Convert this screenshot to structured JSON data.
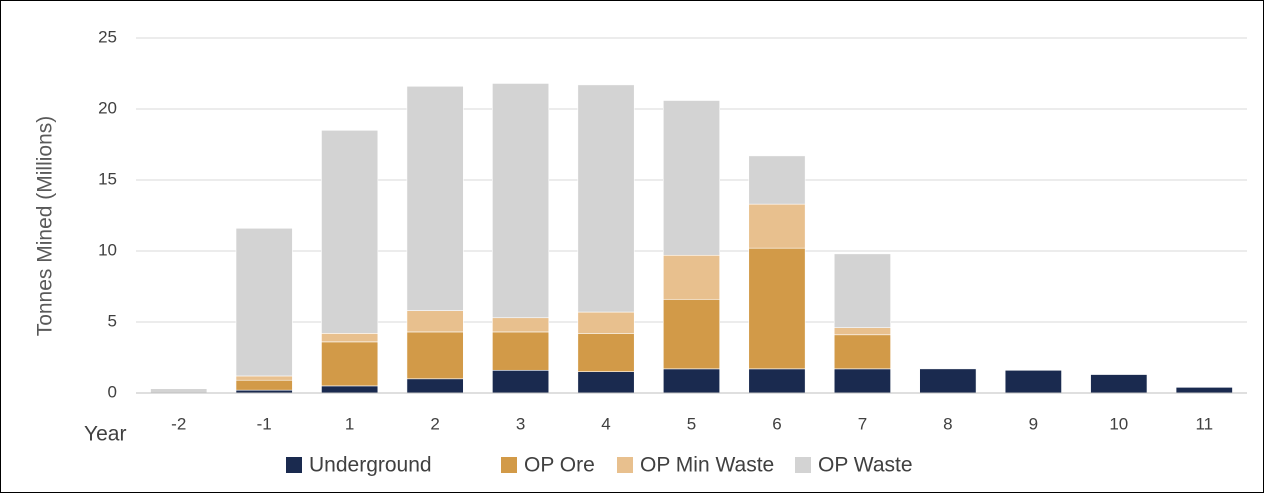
{
  "chart_data": {
    "type": "bar",
    "stacked": true,
    "title": "",
    "xlabel": "Year",
    "ylabel": "Tonnes Mined (Millions)",
    "ylim": [
      0,
      25
    ],
    "yticks": [
      0,
      5,
      10,
      15,
      20,
      25
    ],
    "grid": "horizontal",
    "legend_position": "bottom",
    "categories": [
      "-2",
      "-1",
      "1",
      "2",
      "3",
      "4",
      "5",
      "6",
      "7",
      "8",
      "9",
      "10",
      "11"
    ],
    "series": [
      {
        "name": "Underground",
        "color": "#1a2a4f",
        "values": [
          0,
          0.2,
          0.5,
          1.0,
          1.6,
          1.5,
          1.7,
          1.7,
          1.7,
          1.7,
          1.6,
          1.3,
          0.4
        ]
      },
      {
        "name": "OP Ore",
        "color": "#d29a48",
        "values": [
          0,
          0.7,
          3.1,
          3.3,
          2.7,
          2.7,
          4.9,
          8.5,
          2.4,
          0,
          0,
          0,
          0
        ]
      },
      {
        "name": "OP Min Waste",
        "color": "#e8c08e",
        "values": [
          0,
          0.3,
          0.6,
          1.5,
          1.0,
          1.5,
          3.1,
          3.1,
          0.5,
          0,
          0,
          0,
          0
        ]
      },
      {
        "name": "OP Waste",
        "color": "#d3d3d3",
        "values": [
          0.3,
          10.4,
          14.3,
          15.8,
          16.5,
          16.0,
          10.9,
          3.4,
          5.2,
          0,
          0,
          0,
          0
        ]
      }
    ]
  }
}
